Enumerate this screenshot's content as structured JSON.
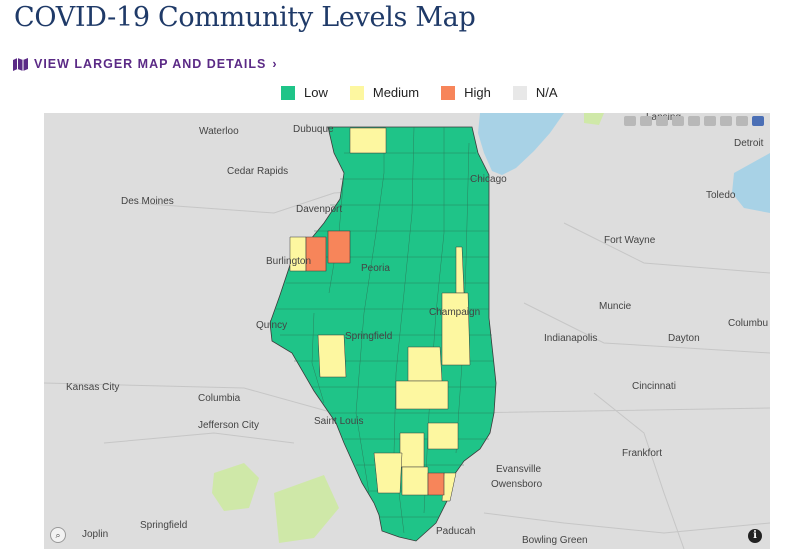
{
  "title": "COVID-19 Community Levels Map",
  "link": {
    "label": "VIEW LARGER MAP AND DETAILS",
    "icon": "map-icon",
    "chevron": "›"
  },
  "legend": [
    {
      "label": "Low",
      "color": "#1fc488"
    },
    {
      "label": "Medium",
      "color": "#fdf7a0"
    },
    {
      "label": "High",
      "color": "#f7855a"
    },
    {
      "label": "N/A",
      "color": "#e8e8e8"
    }
  ],
  "cities": [
    "Waterloo",
    "Dubuque",
    "Cedar Rapids",
    "Des Moines",
    "Davenport",
    "Chicago",
    "Detroit",
    "Toledo",
    "Burlington",
    "Peoria",
    "Fort Wayne",
    "Muncie",
    "Champaign",
    "Quincy",
    "Springfield",
    "Indianapolis",
    "Dayton",
    "Columbu",
    "Kansas City",
    "Columbia",
    "Cincinnati",
    "Jefferson City",
    "Saint Louis",
    "Frankfort",
    "Evansville",
    "Owensboro",
    "Joplin",
    "Springfield",
    "Paducah",
    "Bowling Green",
    "Lansing"
  ],
  "controls": {
    "zoom": "⌕",
    "info": "i"
  }
}
